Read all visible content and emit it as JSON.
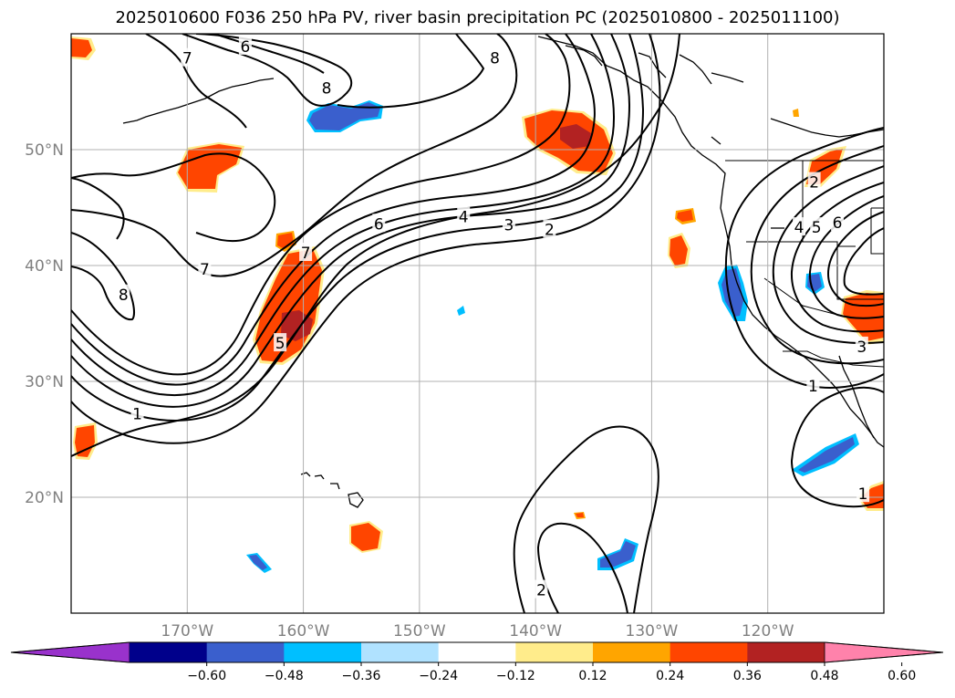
{
  "chart_data": {
    "type": "map",
    "title": "2025010600 F036 250 hPa PV, river basin precipitation PC (2025010800 - 2025011100)",
    "lon_range": [
      -180,
      -110
    ],
    "lat_range": [
      10,
      60
    ],
    "lon_ticks": [
      -170,
      -160,
      -150,
      -140,
      -130,
      -120
    ],
    "lon_tick_labels": [
      "170°W",
      "160°W",
      "150°W",
      "140°W",
      "130°W",
      "120°W"
    ],
    "lat_ticks": [
      20,
      30,
      40,
      50
    ],
    "lat_tick_labels": [
      "20°N",
      "30°N",
      "40°N",
      "50°N"
    ],
    "grid": true,
    "colorbar": {
      "orientation": "horizontal",
      "extend": "both",
      "boundaries": [
        -0.6,
        -0.48,
        -0.36,
        -0.24,
        -0.12,
        0.12,
        0.24,
        0.36,
        0.48,
        0.6
      ],
      "tick_labels": [
        "−0.60",
        "−0.48",
        "−0.36",
        "−0.24",
        "−0.12",
        "0.12",
        "0.24",
        "0.36",
        "0.48",
        "0.60"
      ],
      "colors": [
        "#9932cc",
        "#00008b",
        "#3a5fcd",
        "#00bfff",
        "#b0e2ff",
        "#ffffff",
        "#ffec8b",
        "#ffa500",
        "#ff4500",
        "#b22222",
        "#ff82ab"
      ]
    },
    "pv_contour_levels": [
      1,
      2,
      3,
      4,
      5,
      6,
      7,
      8
    ],
    "pv_contour_labels": [
      {
        "text": "6",
        "lon": -165.0,
        "lat": 58.9
      },
      {
        "text": "7",
        "lon": -170.0,
        "lat": 57.9
      },
      {
        "text": "8",
        "lon": -158.0,
        "lat": 55.3
      },
      {
        "text": "8",
        "lon": -143.5,
        "lat": 57.9
      },
      {
        "text": "7",
        "lon": -168.5,
        "lat": 39.7
      },
      {
        "text": "8",
        "lon": -175.5,
        "lat": 37.5
      },
      {
        "text": "6",
        "lon": -153.5,
        "lat": 43.6
      },
      {
        "text": "4",
        "lon": -146.2,
        "lat": 44.2
      },
      {
        "text": "3",
        "lon": -142.3,
        "lat": 43.5
      },
      {
        "text": "2",
        "lon": -138.8,
        "lat": 43.1
      },
      {
        "text": "7",
        "lon": -159.8,
        "lat": 41.1
      },
      {
        "text": "5",
        "lon": -162.0,
        "lat": 33.3
      },
      {
        "text": "1",
        "lon": -174.3,
        "lat": 27.2
      },
      {
        "text": "2",
        "lon": -139.5,
        "lat": 12.0
      },
      {
        "text": "2",
        "lon": -116.0,
        "lat": 47.2
      },
      {
        "text": "4",
        "lon": -117.3,
        "lat": 43.3
      },
      {
        "text": "5",
        "lon": -115.8,
        "lat": 43.3
      },
      {
        "text": "6",
        "lon": -114.0,
        "lat": 43.7
      },
      {
        "text": "3",
        "lon": -111.9,
        "lat": 33.0
      },
      {
        "text": "1",
        "lon": -116.1,
        "lat": 29.6
      },
      {
        "text": "1",
        "lon": -111.8,
        "lat": 20.3
      }
    ],
    "precip_pc_regions": [
      {
        "category": "0.24 to 0.48",
        "lon": -179,
        "lat": 59
      },
      {
        "category": "0.36 to 0.48",
        "lon": -168,
        "lat": 48
      },
      {
        "category": "-0.36 to -0.24",
        "lon": -157,
        "lat": 53
      },
      {
        "category": "0.36 to 0.60",
        "lon": -137,
        "lat": 50
      },
      {
        "category": "0.36 to 0.60",
        "lon": -161,
        "lat": 37
      },
      {
        "category": "0.36 to 0.48",
        "lon": -178,
        "lat": 25
      },
      {
        "category": "0.36 to 0.48",
        "lon": -155,
        "lat": 17
      },
      {
        "category": "-0.36 to -0.24",
        "lon": -165,
        "lat": 14.5
      },
      {
        "category": "-0.36 to -0.24",
        "lon": -134,
        "lat": 15
      },
      {
        "category": "-0.36 to -0.24",
        "lon": -123,
        "lat": 38
      },
      {
        "category": "-0.36 to -0.24",
        "lon": -118,
        "lat": 24
      },
      {
        "category": "0.36 to 0.48",
        "lon": -128,
        "lat": 41
      },
      {
        "category": "0.36 to 0.48",
        "lon": -127.5,
        "lat": 44.5
      },
      {
        "category": "0.36 to 0.48",
        "lon": -113,
        "lat": 36
      },
      {
        "category": "0.36 to 0.48",
        "lon": -116,
        "lat": 48
      },
      {
        "category": "-0.36 to -0.24",
        "lon": -115.5,
        "lat": 38.5
      },
      {
        "category": "0.36 to 0.48",
        "lon": -111,
        "lat": 20
      }
    ]
  }
}
